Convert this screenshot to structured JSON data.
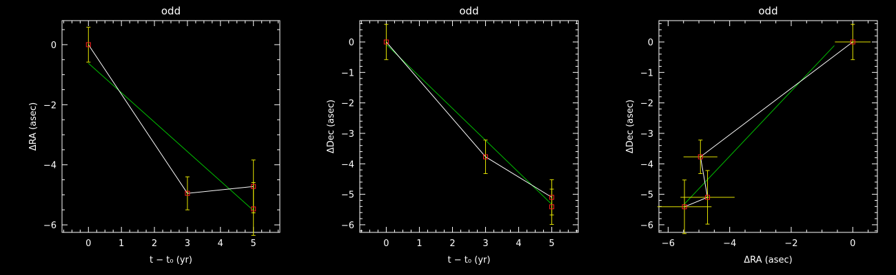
{
  "colors": {
    "background": "#000000",
    "axes": "#ffffff",
    "data_line": "#ffffff",
    "fit_line": "#00c000",
    "error_bars": "#e6e600",
    "markers": "#ff2020"
  },
  "chart_data": [
    {
      "type": "line",
      "title": "odd",
      "xlabel": "t − t₀ (yr)",
      "ylabel": "ΔRA (asec)",
      "xlim": [
        -0.8,
        5.8
      ],
      "ylim": [
        -6.25,
        0.8
      ],
      "xticks": [
        0,
        1,
        2,
        3,
        4,
        5
      ],
      "yticks": [
        0,
        -2,
        -4,
        -6
      ],
      "points": [
        {
          "x": 0,
          "y": 0.0,
          "yerr": 0.58
        },
        {
          "x": 3,
          "y": -4.95,
          "yerr": 0.55
        },
        {
          "x": 5,
          "y": -4.72,
          "yerr": 0.88
        },
        {
          "x": 5,
          "y": -5.47,
          "yerr": 0.88
        }
      ],
      "data_path": [
        [
          0,
          0.0
        ],
        [
          3,
          -4.95
        ],
        [
          5,
          -4.72
        ]
      ],
      "fit_line": [
        [
          0,
          -0.62
        ],
        [
          5,
          -5.52
        ]
      ]
    },
    {
      "type": "line",
      "title": "odd",
      "xlabel": "t − t₀ (yr)",
      "ylabel": "ΔDec (asec)",
      "xlim": [
        -0.8,
        5.8
      ],
      "ylim": [
        -6.25,
        0.7
      ],
      "xticks": [
        0,
        1,
        2,
        3,
        4,
        5
      ],
      "yticks": [
        0,
        -1,
        -2,
        -3,
        -4,
        -5,
        -6
      ],
      "points": [
        {
          "x": 0,
          "y": 0.0,
          "yerr": 0.58
        },
        {
          "x": 3,
          "y": -3.77,
          "yerr": 0.55
        },
        {
          "x": 5,
          "y": -5.1,
          "yerr": 0.58
        },
        {
          "x": 5,
          "y": -5.41,
          "yerr": 0.58
        }
      ],
      "data_path": [
        [
          0,
          0.0
        ],
        [
          3,
          -3.77
        ],
        [
          5,
          -5.1
        ]
      ],
      "fit_line": [
        [
          0,
          -0.08
        ],
        [
          5,
          -5.33
        ]
      ]
    },
    {
      "type": "scatter",
      "title": "odd",
      "xlabel": "ΔRA (asec)",
      "ylabel": "ΔDec (asec)",
      "xlim": [
        -6.3,
        0.8
      ],
      "ylim": [
        -6.25,
        0.7
      ],
      "xticks": [
        -6,
        -4,
        -2,
        0
      ],
      "yticks": [
        0,
        -1,
        -2,
        -3,
        -4,
        -5,
        -6
      ],
      "points": [
        {
          "x": 0.0,
          "y": 0.0,
          "xerr": 0.58,
          "yerr": 0.58
        },
        {
          "x": -4.95,
          "y": -3.77,
          "xerr": 0.55,
          "yerr": 0.55
        },
        {
          "x": -4.72,
          "y": -5.1,
          "xerr": 0.88,
          "yerr": 0.88
        },
        {
          "x": -5.47,
          "y": -5.41,
          "xerr": 0.88,
          "yerr": 0.88
        }
      ],
      "data_path": [
        [
          0.0,
          0.0
        ],
        [
          -4.95,
          -3.77
        ],
        [
          -4.72,
          -5.1
        ],
        [
          -5.47,
          -5.41
        ]
      ],
      "fit_line": [
        [
          -0.6,
          -0.12
        ],
        [
          -5.5,
          -5.35
        ]
      ]
    }
  ]
}
